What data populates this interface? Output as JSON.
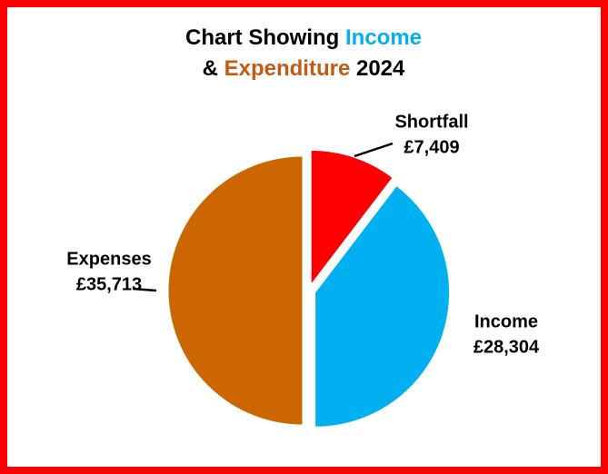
{
  "chart_data": {
    "type": "pie",
    "title": [
      [
        {
          "text": "Chart Showing "
        },
        {
          "text": "Income",
          "color": "#00b0f0"
        }
      ],
      [
        {
          "text": "& "
        },
        {
          "text": "Expenditure",
          "color": "#c55a11"
        },
        {
          "text": "  2024"
        }
      ]
    ],
    "categories": [
      "Shortfall",
      "Income",
      "Expenses"
    ],
    "values": [
      7409,
      28304,
      35713
    ],
    "value_labels": [
      "£7,409",
      "£28,304",
      "£35,713"
    ],
    "colors": [
      "#ff0000",
      "#00b0f0",
      "#cc6600"
    ]
  }
}
